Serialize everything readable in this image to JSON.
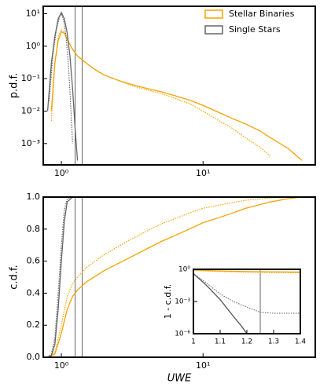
{
  "chart_data": [
    {
      "type": "line",
      "ylabel": "p.d.f.",
      "xlog": true,
      "ylog": true,
      "xlim": [
        0.745,
        62
      ],
      "ylim": [
        0.00022,
        17
      ],
      "xticks": [
        {
          "value": 1,
          "label": "10⁰"
        },
        {
          "value": 10,
          "label": "10¹"
        }
      ],
      "yticks": [
        {
          "value": 0.001,
          "label": "10⁻³"
        },
        {
          "value": 0.01,
          "label": "10⁻²"
        },
        {
          "value": 0.1,
          "label": "10⁻¹"
        },
        {
          "value": 1,
          "label": "10⁰"
        },
        {
          "value": 10,
          "label": "10¹"
        }
      ],
      "vlines": [
        1.25,
        1.4
      ],
      "legend": "upper right",
      "series": [
        {
          "name": "Stellar Binaries",
          "color": "#f5a300",
          "dash": "solid",
          "x": [
            0.85,
            0.9,
            0.95,
            1.0,
            1.05,
            1.1,
            1.2,
            1.3,
            1.5,
            1.7,
            2,
            2.5,
            3,
            4,
            5,
            6,
            8,
            10,
            13,
            16,
            20,
            25,
            30,
            40,
            50
          ],
          "values": [
            0.01,
            0.3,
            1.5,
            2.8,
            2.5,
            1.6,
            0.8,
            0.5,
            0.3,
            0.2,
            0.13,
            0.09,
            0.07,
            0.05,
            0.04,
            0.032,
            0.022,
            0.015,
            0.009,
            0.006,
            0.004,
            0.0025,
            0.0015,
            0.0007,
            0.0003
          ]
        },
        {
          "color": "#f5a300",
          "dash": "dotted",
          "x": [
            0.85,
            0.9,
            0.95,
            1.0,
            1.05,
            1.1,
            1.2,
            1.3,
            1.5,
            1.7,
            2,
            2.5,
            3,
            4,
            5,
            6,
            8,
            10,
            13,
            16,
            20,
            25,
            30
          ],
          "values": [
            0.005,
            0.3,
            2,
            3.2,
            2.8,
            1.7,
            0.8,
            0.5,
            0.3,
            0.2,
            0.13,
            0.09,
            0.065,
            0.045,
            0.035,
            0.027,
            0.017,
            0.01,
            0.005,
            0.003,
            0.0015,
            0.0008,
            0.0004
          ]
        },
        {
          "name": "Single Stars",
          "color": "#666666",
          "dash": "solid",
          "x": [
            0.8,
            0.85,
            0.9,
            0.95,
            1.0,
            1.05,
            1.1,
            1.15,
            1.2,
            1.25,
            1.3
          ],
          "values": [
            0.01,
            0.3,
            2,
            7,
            11,
            7,
            2.5,
            0.5,
            0.05,
            0.003,
            0.0003
          ]
        },
        {
          "color": "#666666",
          "dash": "dotted",
          "x": [
            0.82,
            0.87,
            0.92,
            0.97,
            1.0,
            1.04,
            1.08,
            1.12,
            1.16,
            1.2
          ],
          "values": [
            0.02,
            0.5,
            3,
            8,
            10,
            6,
            2,
            0.3,
            0.02,
            0.001
          ]
        }
      ]
    },
    {
      "type": "line",
      "ylabel": "c.d.f.",
      "xlabel": "UWE",
      "xlog": true,
      "ylog": false,
      "xlim": [
        0.745,
        62
      ],
      "ylim": [
        0,
        1
      ],
      "xticks": [
        {
          "value": 1,
          "label": "10⁰"
        },
        {
          "value": 10,
          "label": "10¹"
        }
      ],
      "yticks": [
        {
          "value": 0,
          "label": "0.0"
        },
        0.2,
        0.4,
        0.6,
        0.8,
        {
          "value": 1,
          "label": "1.0"
        }
      ],
      "vlines": [
        1.25,
        1.4
      ],
      "series": [
        {
          "color": "#f5a300",
          "dash": "solid",
          "x": [
            0.8,
            0.9,
            1.0,
            1.1,
            1.2,
            1.3,
            1.5,
            2,
            3,
            5,
            8,
            10,
            15,
            20,
            30,
            40,
            50,
            60
          ],
          "values": [
            0,
            0.02,
            0.15,
            0.3,
            0.38,
            0.42,
            0.47,
            0.54,
            0.62,
            0.72,
            0.8,
            0.84,
            0.89,
            0.93,
            0.97,
            0.99,
            1,
            1
          ]
        },
        {
          "color": "#f5a300",
          "dash": "dotted",
          "x": [
            0.8,
            0.9,
            1.0,
            1.1,
            1.2,
            1.3,
            1.5,
            2,
            3,
            5,
            8,
            10,
            15,
            20,
            30,
            40,
            50,
            60
          ],
          "values": [
            0,
            0.03,
            0.2,
            0.38,
            0.46,
            0.5,
            0.56,
            0.64,
            0.73,
            0.83,
            0.9,
            0.93,
            0.96,
            0.98,
            0.995,
            1,
            1,
            1
          ]
        },
        {
          "color": "#666666",
          "dash": "solid",
          "x": [
            0.8,
            0.85,
            0.9,
            0.95,
            1.0,
            1.05,
            1.1,
            1.2,
            1.3
          ],
          "values": [
            0,
            0.01,
            0.08,
            0.3,
            0.6,
            0.85,
            0.97,
            1,
            1
          ]
        },
        {
          "color": "#666666",
          "dash": "dotted",
          "x": [
            0.8,
            0.85,
            0.9,
            0.95,
            1.0,
            1.05,
            1.1,
            1.2
          ],
          "values": [
            0,
            0.02,
            0.12,
            0.4,
            0.7,
            0.92,
            0.99,
            1
          ]
        }
      ]
    },
    {
      "type": "line",
      "ylabel": "1 - c.d.f.",
      "xlog": false,
      "ylog": true,
      "xlim": [
        1,
        1.4
      ],
      "ylim": [
        1e-06,
        1
      ],
      "xticks": [
        1,
        1.1,
        1.2,
        1.3,
        1.4
      ],
      "yticks": [
        {
          "value": 1e-06,
          "label": "10⁻⁶"
        },
        {
          "value": 0.001,
          "label": "10⁻³"
        },
        {
          "value": 1,
          "label": "10⁰"
        }
      ],
      "vlines": [
        1.25
      ],
      "series": [
        {
          "color": "#f5a300",
          "dash": "solid",
          "x": [
            1,
            1.1,
            1.2,
            1.3,
            1.4
          ],
          "values": [
            0.85,
            0.7,
            0.62,
            0.58,
            0.55
          ]
        },
        {
          "color": "#f5a300",
          "dash": "dotted",
          "x": [
            1,
            1.1,
            1.2,
            1.3,
            1.4
          ],
          "values": [
            0.8,
            0.62,
            0.54,
            0.5,
            0.47
          ]
        },
        {
          "color": "#555555",
          "dash": "solid",
          "x": [
            1,
            1.05,
            1.1,
            1.15,
            1.18,
            1.2
          ],
          "values": [
            0.4,
            0.03,
            0.0015,
            4e-05,
            5e-06,
            1e-06
          ]
        },
        {
          "color": "#777777",
          "dash": "dotted",
          "x": [
            1,
            1.05,
            1.1,
            1.15,
            1.2,
            1.25,
            1.3,
            1.4
          ],
          "values": [
            0.4,
            0.05,
            0.005,
            0.001,
            0.0003,
            0.0001,
            8e-05,
            8e-05
          ]
        }
      ]
    }
  ]
}
